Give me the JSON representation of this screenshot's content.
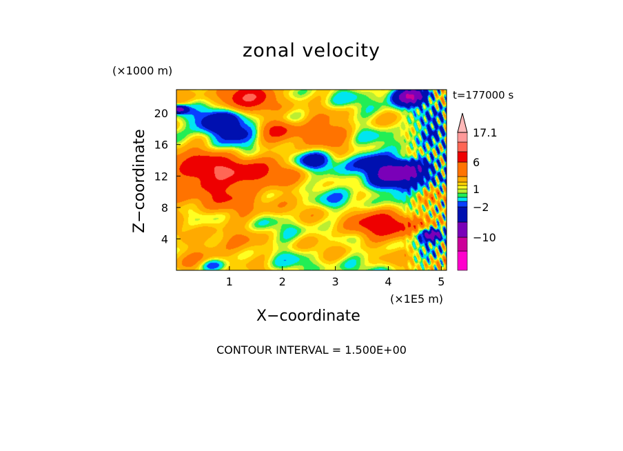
{
  "chart_data": {
    "type": "heatmap",
    "title": "zonal velocity",
    "xlabel": "X−coordinate",
    "ylabel": "Z−coordinate",
    "x_unit_label": "(×1E5 m)",
    "y_unit_label": "(×1000 m)",
    "time_label": "t=177000 s",
    "footer": "CONTOUR INTERVAL = 1.500E+00",
    "xlim": [
      0,
      5.1
    ],
    "ylim": [
      0,
      23
    ],
    "x_ticks": [
      1,
      2,
      3,
      4,
      5
    ],
    "y_ticks": [
      4,
      8,
      12,
      16,
      20
    ],
    "colorbar": {
      "labels": [
        {
          "value": 17.1,
          "text": "17.1"
        },
        {
          "value": 6,
          "text": "6"
        },
        {
          "value": 1,
          "text": "1"
        },
        {
          "value": -2,
          "text": "−2"
        },
        {
          "value": -10,
          "text": "−10"
        }
      ],
      "levels": [
        {
          "min": -25,
          "max": -15,
          "color": "#ff00cc"
        },
        {
          "min": -15,
          "max": -10,
          "color": "#cc0099"
        },
        {
          "min": -10,
          "max": -6,
          "color": "#7a00b8"
        },
        {
          "min": -6,
          "max": -2,
          "color": "#0010b0"
        },
        {
          "min": -2,
          "max": -1,
          "color": "#0a3fff"
        },
        {
          "min": -1,
          "max": 0,
          "color": "#00e5f0"
        },
        {
          "min": 0,
          "max": 0.5,
          "color": "#22ee55"
        },
        {
          "min": 0.5,
          "max": 1,
          "color": "#bbee33"
        },
        {
          "min": 1,
          "max": 1.5,
          "color": "#ffff22"
        },
        {
          "min": 1.5,
          "max": 2.2,
          "color": "#ffd000"
        },
        {
          "min": 2.2,
          "max": 3.5,
          "color": "#ffaa00"
        },
        {
          "min": 3.5,
          "max": 6,
          "color": "#ff7300"
        },
        {
          "min": 6,
          "max": 9,
          "color": "#ee0000"
        },
        {
          "min": 9,
          "max": 13,
          "color": "#ff6655"
        },
        {
          "min": 13,
          "max": 17.1,
          "color": "#ff9999"
        },
        {
          "min": 17.1,
          "max": 25,
          "color": "#ffb8b8"
        }
      ]
    },
    "field_regions": [
      {
        "x": 0.8,
        "z": 11,
        "value": 4,
        "spread": 1.3
      },
      {
        "x": 0.4,
        "z": 13,
        "value": 3.5,
        "spread": 0.8
      },
      {
        "x": 1.4,
        "z": 12.5,
        "value": 3,
        "spread": 0.6
      },
      {
        "x": 2.4,
        "z": 7.5,
        "value": -0.3,
        "spread": 1.4
      },
      {
        "x": 3.1,
        "z": 10,
        "value": -0.5,
        "spread": 0.9
      },
      {
        "x": 1.6,
        "z": 7.5,
        "value": 0.3,
        "spread": 0.6
      },
      {
        "x": 1.2,
        "z": 17.5,
        "value": -4.5,
        "spread": 0.6
      },
      {
        "x": 0.6,
        "z": 18.8,
        "value": -4,
        "spread": 0.5
      },
      {
        "x": 2.6,
        "z": 14,
        "value": -3.5,
        "spread": 0.35
      },
      {
        "x": 4.1,
        "z": 12,
        "value": -6,
        "spread": 0.6
      },
      {
        "x": 4.5,
        "z": 13,
        "value": -5,
        "spread": 0.5
      },
      {
        "x": 3.6,
        "z": 14,
        "value": -3,
        "spread": 0.4
      },
      {
        "x": 1.4,
        "z": 22.3,
        "value": 6.5,
        "spread": 0.6
      },
      {
        "x": 1.9,
        "z": 18,
        "value": 6.5,
        "spread": 0.4
      },
      {
        "x": 2.75,
        "z": 17.5,
        "value": 4.5,
        "spread": 0.5
      },
      {
        "x": 4.4,
        "z": 22.2,
        "value": -11,
        "spread": 0.35
      },
      {
        "x": 3.6,
        "z": 5.5,
        "value": 4,
        "spread": 0.6
      },
      {
        "x": 4.2,
        "z": 6,
        "value": 4,
        "spread": 0.6
      },
      {
        "x": 0.75,
        "z": 2.5,
        "value": 3,
        "spread": 0.6
      },
      {
        "x": 0.7,
        "z": 0.6,
        "value": -4,
        "spread": 0.25
      },
      {
        "x": 4.85,
        "z": 4.5,
        "value": -10,
        "spread": 0.25
      },
      {
        "x": 4.8,
        "z": 18,
        "value": -3,
        "spread": 0.5
      },
      {
        "x": 0.05,
        "z": 20.5,
        "value": -9,
        "spread": 0.15
      }
    ]
  }
}
